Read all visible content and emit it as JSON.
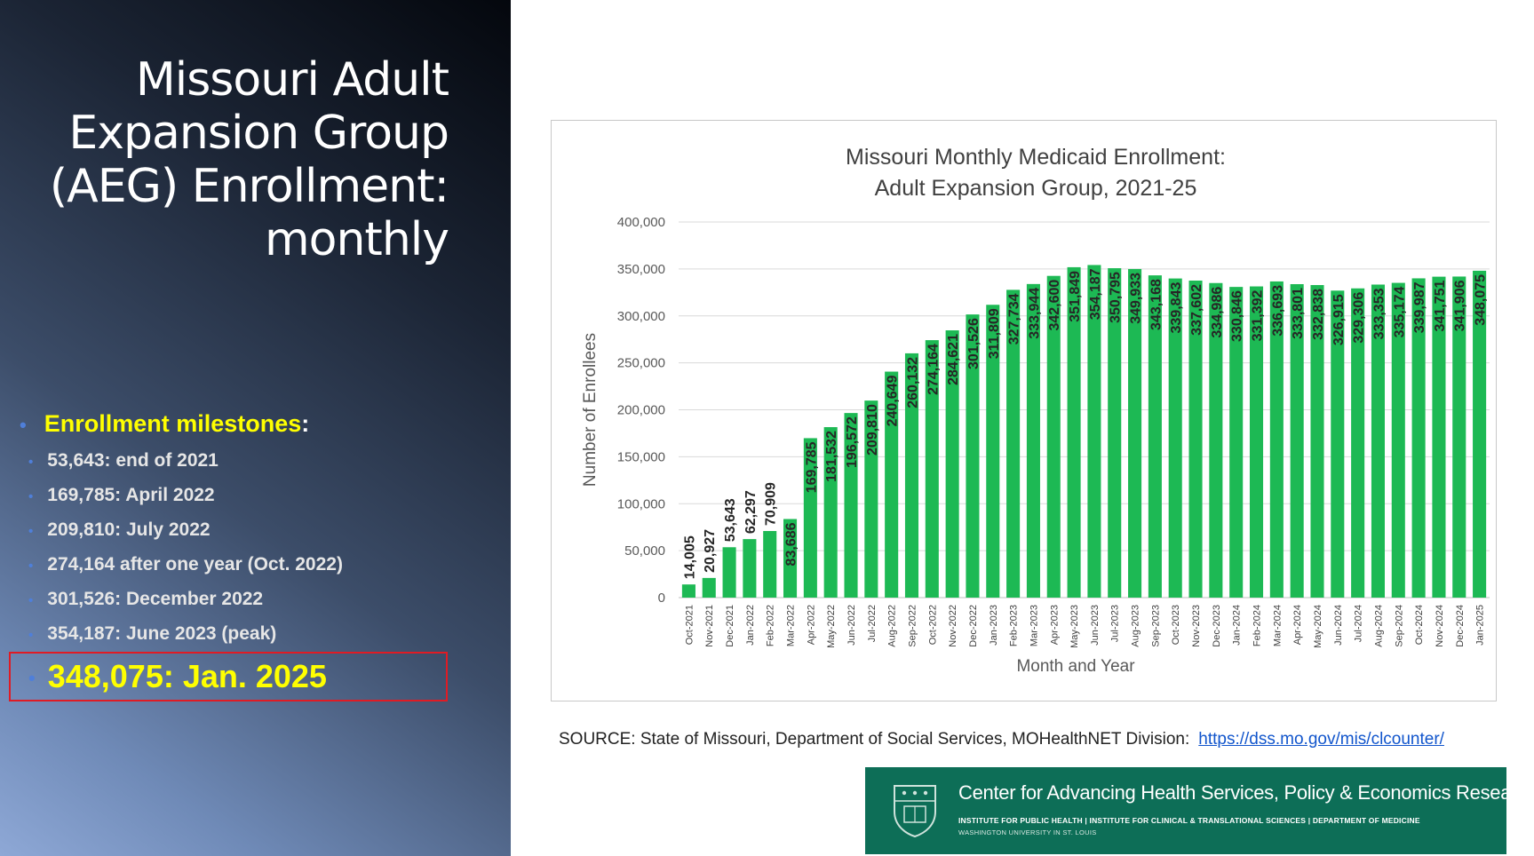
{
  "slide": {
    "title_lines": [
      "Missouri Adult",
      "Expansion Group",
      "(AEG) Enrollment:",
      "monthly"
    ],
    "milestones_heading": "Enrollment milestones",
    "milestones_colon": ":",
    "milestones": [
      "53,643: end of 2021",
      "169,785: April 2022",
      "209,810: July 2022",
      "274,164 after one year (Oct. 2022)",
      "301,526: December 2022",
      "354,187: June 2023 (peak)"
    ],
    "highlight": "348,075: Jan. 2025",
    "bullet": "•"
  },
  "source": {
    "text": "SOURCE: State of Missouri, Department of Social Services, MOHealthNET Division:",
    "link": "https://dss.mo.gov/mis/clcounter/"
  },
  "logo": {
    "title": "Center for Advancing Health Services, Policy & Economics Research",
    "sub1": "INSTITUTE FOR PUBLIC HEALTH | INSTITUTE FOR CLINICAL & TRANSLATIONAL SCIENCES | DEPARTMENT OF MEDICINE",
    "sub2": "WASHINGTON UNIVERSITY IN ST. LOUIS",
    "color": "#0d6e57"
  },
  "chart_data": {
    "type": "bar",
    "title_lines": [
      "Missouri Monthly Medicaid Enrollment:",
      "Adult Expansion Group, 2021-25"
    ],
    "xlabel": "Month and Year",
    "ylabel": "Number of Enrollees",
    "ylim": [
      0,
      400000
    ],
    "yticks": [
      0,
      50000,
      100000,
      150000,
      200000,
      250000,
      300000,
      350000,
      400000
    ],
    "ytick_labels": [
      "0",
      "50,000",
      "100,000",
      "150,000",
      "200,000",
      "250,000",
      "300,000",
      "350,000",
      "400,000"
    ],
    "grid": true,
    "bar_color": "#1db954",
    "categories": [
      "Oct-2021",
      "Nov-2021",
      "Dec-2021",
      "Jan-2022",
      "Feb-2022",
      "Mar-2022",
      "Apr-2022",
      "May-2022",
      "Jun-2022",
      "Jul-2022",
      "Aug-2022",
      "Sep-2022",
      "Oct-2022",
      "Nov-2022",
      "Dec-2022",
      "Jan-2023",
      "Feb-2023",
      "Mar-2023",
      "Apr-2023",
      "May-2023",
      "Jun-2023",
      "Jul-2023",
      "Aug-2023",
      "Sep-2023",
      "Oct-2023",
      "Nov-2023",
      "Dec-2023",
      "Jan-2024",
      "Feb-2024",
      "Mar-2024",
      "Apr-2024",
      "May-2024",
      "Jun-2024",
      "Jul-2024",
      "Aug-2024",
      "Sep-2024",
      "Oct-2024",
      "Nov-2024",
      "Dec-2024",
      "Jan-2025"
    ],
    "values": [
      14005,
      20927,
      53643,
      62297,
      70909,
      83686,
      169785,
      181532,
      196572,
      209810,
      240649,
      260132,
      274164,
      284621,
      301526,
      311809,
      327734,
      333944,
      342600,
      351849,
      354187,
      350795,
      349933,
      343168,
      339843,
      337602,
      334986,
      330846,
      331392,
      336693,
      333801,
      332838,
      326915,
      329306,
      333353,
      335174,
      339987,
      341751,
      341906,
      348075
    ],
    "labels": [
      "14,005",
      "20,927",
      "53,643",
      "62,297",
      "70,909",
      "83,686",
      "169,785",
      "181,532",
      "196,572",
      "209,810",
      "240,649",
      "260,132",
      "274,164",
      "284,621",
      "301,526",
      "311,809",
      "327,734",
      "333,944",
      "342,600",
      "351,849",
      "354,187",
      "350,795",
      "349,933",
      "343,168",
      "339,843",
      "337,602",
      "334,986",
      "330,846",
      "331,392",
      "336,693",
      "333,801",
      "332,838",
      "326,915",
      "329,306",
      "333,353",
      "335,174",
      "339,987",
      "341,751",
      "341,906",
      "348,075"
    ]
  }
}
